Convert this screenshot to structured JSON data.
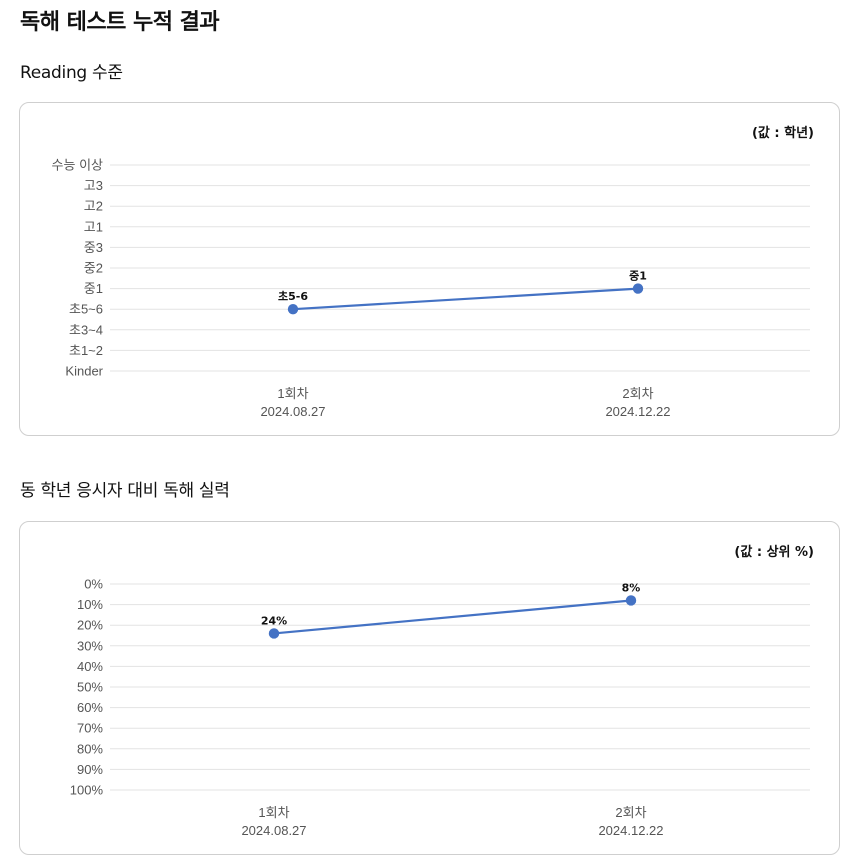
{
  "page_title": "독해 테스트 누적 결과",
  "sections": [
    {
      "title": "Reading 수준"
    },
    {
      "title": "동 학년 응시자 대비 독해 실력"
    }
  ],
  "chart_data": [
    {
      "type": "line",
      "note": "(값 : 학년)",
      "y_categories": [
        "수능 이상",
        "고3",
        "고2",
        "고1",
        "중3",
        "중2",
        "중1",
        "초5~6",
        "초3~4",
        "초1~2",
        "Kinder"
      ],
      "x": [
        {
          "label": "1회차",
          "date": "2024.08.27"
        },
        {
          "label": "2회차",
          "date": "2024.12.22"
        }
      ],
      "series": [
        {
          "values": [
            "초5~6",
            "중1"
          ],
          "data_labels": [
            "초5-6",
            "중1"
          ],
          "color": "#4472c4"
        }
      ],
      "grid": true
    },
    {
      "type": "line",
      "note": "(값 : 상위 %)",
      "y_ticks": [
        "0%",
        "10%",
        "20%",
        "30%",
        "40%",
        "50%",
        "60%",
        "70%",
        "80%",
        "90%",
        "100%"
      ],
      "ylim": [
        0,
        100
      ],
      "y_inverted": true,
      "x": [
        {
          "label": "1회차",
          "date": "2024.08.27"
        },
        {
          "label": "2회차",
          "date": "2024.12.22"
        }
      ],
      "series": [
        {
          "values": [
            24,
            8
          ],
          "data_labels": [
            "24%",
            "8%"
          ],
          "color": "#4472c4"
        }
      ],
      "grid": true
    }
  ]
}
